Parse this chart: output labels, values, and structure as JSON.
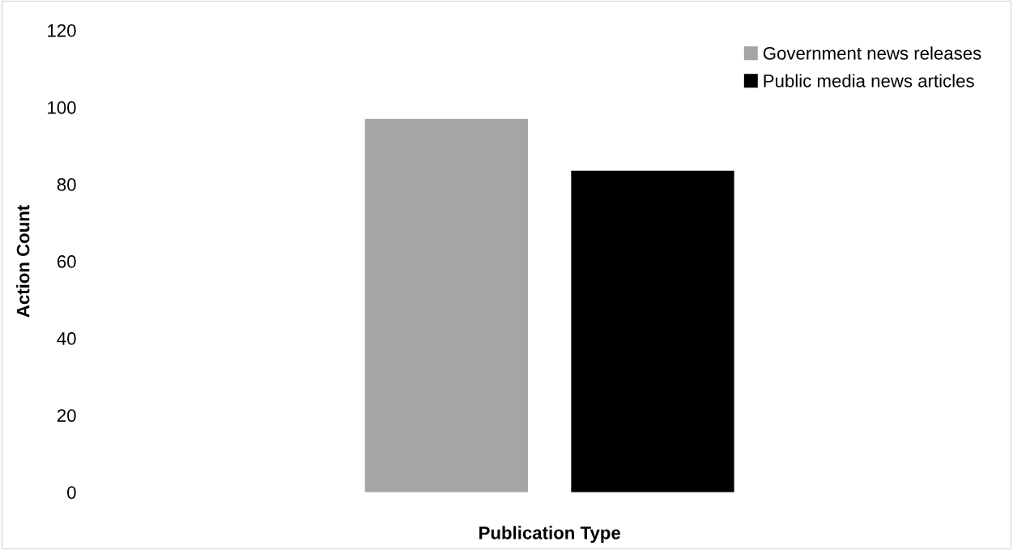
{
  "chart_data": {
    "type": "bar",
    "xlabel": "Publication Type",
    "ylabel": "Action Count",
    "categories": [
      null
    ],
    "series": [
      {
        "name": "Government news releases",
        "color": "#a5a5a5",
        "values": [
          97
        ]
      },
      {
        "name": "Public media news articles",
        "color": "#000000",
        "values": [
          83.5
        ]
      }
    ],
    "ylim": [
      0,
      120
    ],
    "yticks": [
      0,
      20,
      40,
      60,
      80,
      100,
      120
    ],
    "grid": false,
    "legend": "top right",
    "tick_labels": "y"
  }
}
